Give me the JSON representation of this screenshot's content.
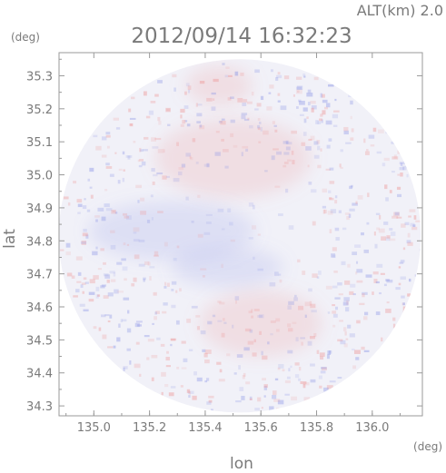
{
  "header": {
    "altitude": "ALT(km) 2.0",
    "timestamp": "2012/09/14 16:32:23"
  },
  "chart_data": {
    "type": "heatmap",
    "title": "2012/09/14 16:32:23",
    "xlabel": "lon",
    "ylabel": "lat",
    "x_unit": "(deg)",
    "y_unit": "(deg)",
    "xlim": [
      134.875,
      136.18
    ],
    "ylim": [
      34.27,
      35.37
    ],
    "x_ticks": [
      135.0,
      135.2,
      135.4,
      135.6,
      135.8,
      136.0
    ],
    "x_tick_labels": [
      "135.0",
      "135.2",
      "135.4",
      "135.6",
      "135.8",
      "136.0"
    ],
    "y_ticks": [
      34.3,
      34.4,
      34.5,
      34.6,
      34.7,
      34.8,
      34.9,
      35.0,
      35.1,
      35.2,
      35.3
    ],
    "y_tick_labels": [
      "34.3",
      "34.4",
      "34.5",
      "34.6",
      "34.7",
      "34.8",
      "34.9",
      "35.0",
      "35.1",
      "35.2",
      "35.3"
    ],
    "domain": {
      "center": [
        135.524,
        34.815
      ],
      "radius_lon": 0.65,
      "radius_lat": 0.535
    },
    "regions": [
      {
        "kind": "positive",
        "center": [
          135.5,
          35.05
        ],
        "radius_lon": 0.28,
        "radius_lat": 0.12
      },
      {
        "kind": "positive",
        "center": [
          135.45,
          35.27
        ],
        "radius_lon": 0.12,
        "radius_lat": 0.06
      },
      {
        "kind": "negative",
        "center": [
          135.48,
          34.72
        ],
        "radius_lon": 0.2,
        "radius_lat": 0.06
      },
      {
        "kind": "negative",
        "center": [
          135.28,
          34.83
        ],
        "radius_lon": 0.3,
        "radius_lat": 0.09
      },
      {
        "kind": "positive",
        "center": [
          135.6,
          34.55
        ],
        "radius_lon": 0.22,
        "radius_lat": 0.1
      }
    ],
    "colors": {
      "positive": "#ee9a9a",
      "negative": "#8f98e6",
      "background": "#f1f1f8",
      "axis": "#9a9a9a"
    },
    "grid": false,
    "legend": "none"
  }
}
